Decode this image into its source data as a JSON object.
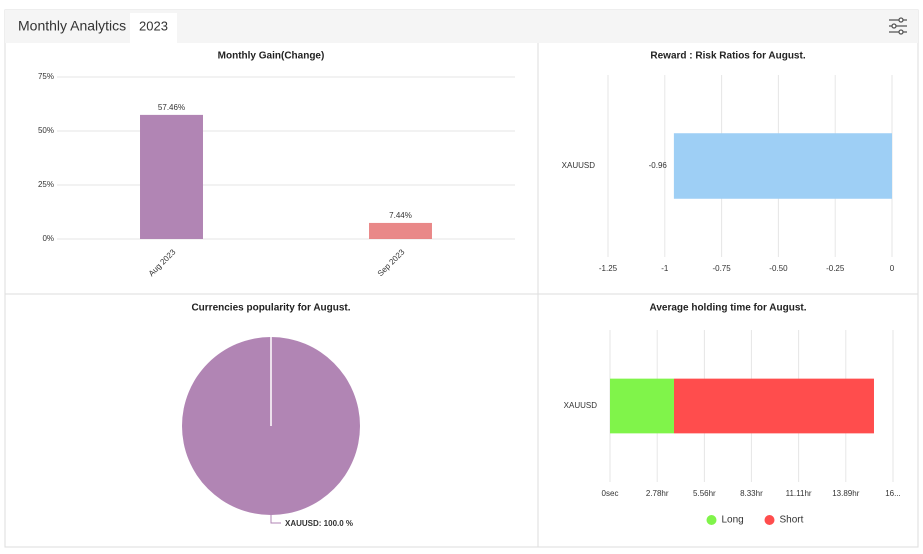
{
  "header": {
    "title": "Monthly Analytics",
    "tab": "2023"
  },
  "chart_data": [
    {
      "type": "bar",
      "title": "Monthly Gain(Change)",
      "categories": [
        "Aug 2023",
        "Sep 2023"
      ],
      "values": [
        57.46,
        7.44
      ],
      "value_labels": [
        "57.46%",
        "7.44%"
      ],
      "colors": [
        "#b185b4",
        "#e57373"
      ],
      "ylim": [
        0,
        75
      ],
      "yticks": [
        {
          "value": 0,
          "label": "0%"
        },
        {
          "value": 25,
          "label": "25%"
        },
        {
          "value": 50,
          "label": "50%"
        },
        {
          "value": 75,
          "label": "75%"
        }
      ],
      "grid": true
    },
    {
      "type": "bar",
      "orientation": "horizontal",
      "title": "Reward : Risk Ratios for August.",
      "categories": [
        "XAUUSD"
      ],
      "values": [
        -0.96
      ],
      "color": "#9ecff5",
      "xlim": [
        -1.25,
        0
      ],
      "xticks": [
        -1.25,
        -1,
        -0.75,
        {
          "value": -0.5,
          "label": "-0.50"
        },
        -0.25,
        0
      ],
      "grid": true
    },
    {
      "type": "pie",
      "title": "Currencies popularity for August.",
      "categories": [
        "XAUUSD"
      ],
      "values": [
        100
      ],
      "value_labels": [
        "XAUUSD: 100.0 %"
      ],
      "colors": [
        "#b185b4"
      ]
    },
    {
      "type": "stacked_bar",
      "orientation": "horizontal",
      "title": "Average holding time for August.",
      "categories": [
        "XAUUSD"
      ],
      "series": [
        {
          "name": "Long",
          "color": "#80f44a",
          "values": [
            3.77
          ]
        },
        {
          "name": "Short",
          "color": "#ff4d4d",
          "values": [
            11.78
          ]
        }
      ],
      "xlim": [
        0,
        16.67
      ],
      "xticks": [
        {
          "value": 0,
          "label": "0sec"
        },
        {
          "value": 2.78,
          "label": "2.78hr"
        },
        {
          "value": 5.56,
          "label": "5.56hr"
        },
        {
          "value": 8.33,
          "label": "8.33hr"
        },
        {
          "value": 11.11,
          "label": "11.11hr"
        },
        {
          "value": 13.89,
          "label": "13.89hr"
        },
        {
          "value": 16.67,
          "label": "16..."
        }
      ],
      "grid": true,
      "legend": "bottom"
    }
  ]
}
